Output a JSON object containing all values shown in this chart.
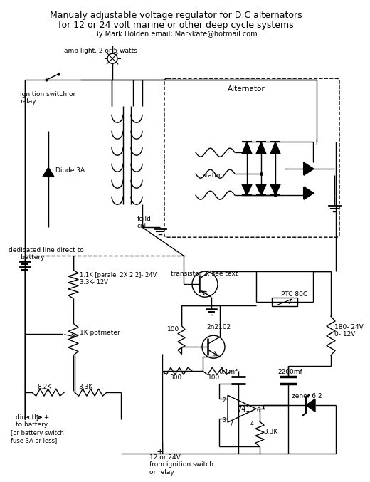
{
  "title_line1": "Manualy adjustable voltage regulator for D.C alternators",
  "title_line2": "for 12 or 24 volt marine or other deep cycle systems",
  "title_line3": "By Mark Holden email; Markkate@hotmail.com",
  "bg_color": "#ffffff",
  "labels": {
    "amp_light": "amp light, 2 or 5 watts",
    "ignition": "ignition switch or\nrelay",
    "diode3a": "Diode 3A",
    "alternator": "Alternator",
    "stator": "stator",
    "feild_coil": "feild\ncoil",
    "dedicated": "dedicated line direct to\n      battery",
    "resistor1": "1.1K [paralel 2X 2.2]- 24V\n3.3K- 12V",
    "potmeter": "1K potmeter",
    "transistor2": "transistor 2; see text",
    "ptc": "PTC 80C",
    "r100": "100",
    "r300": "300",
    "r100b": "100",
    "r180": "180- 24V\n0- 12V",
    "r8k2": "8.2K",
    "r3k3a": "3.3K",
    "c01": "0.1mf",
    "c2200": "2200mf",
    "ic741": "741",
    "r3k3b": "3.3K",
    "zener": "zener 6.2",
    "battery_out": "directly  +\nto battery\n[or battery switch\nfuse 3A or less]",
    "power_in": "12 or 24V\nfrom ignition switch\nor relay",
    "transistor2n": "2n2102"
  }
}
